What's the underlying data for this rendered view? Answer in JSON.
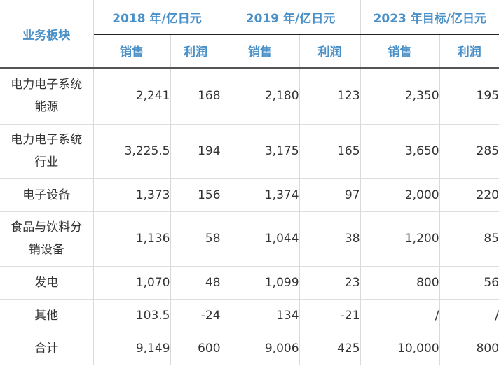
{
  "table": {
    "corner_label": "业务板块",
    "years": [
      "2018 年/亿日元",
      "2019 年/亿日元",
      "2023 年目标/亿日元"
    ],
    "sub_headers": [
      "销售",
      "利润",
      "销售",
      "利润",
      "销售",
      "利润"
    ],
    "rows": [
      {
        "name_lines": [
          "电力电子系统",
          "能源"
        ],
        "cells": [
          "2,241",
          "168",
          "2,180",
          "123",
          "2,350",
          "195"
        ]
      },
      {
        "name_lines": [
          "电力电子系统",
          "行业"
        ],
        "cells": [
          "3,225.5",
          "194",
          "3,175",
          "165",
          "3,650",
          "285"
        ]
      },
      {
        "name_lines": [
          "电子设备"
        ],
        "cells": [
          "1,373",
          "156",
          "1,374",
          "97",
          "2,000",
          "220"
        ]
      },
      {
        "name_lines": [
          "食品与饮料分",
          "销设备"
        ],
        "cells": [
          "1,136",
          "58",
          "1,044",
          "38",
          "1,200",
          "85"
        ]
      },
      {
        "name_lines": [
          "发电"
        ],
        "cells": [
          "1,070",
          "48",
          "1,099",
          "23",
          "800",
          "56"
        ]
      },
      {
        "name_lines": [
          "其他"
        ],
        "cells": [
          "103.5",
          "-24",
          "134",
          "-21",
          "/",
          "/"
        ]
      },
      {
        "name_lines": [
          "合计"
        ],
        "cells": [
          "9,149",
          "600",
          "9,006",
          "425",
          "10,000",
          "800"
        ]
      }
    ]
  },
  "colors": {
    "header_text": "#4a90c8",
    "body_text": "#333333"
  }
}
